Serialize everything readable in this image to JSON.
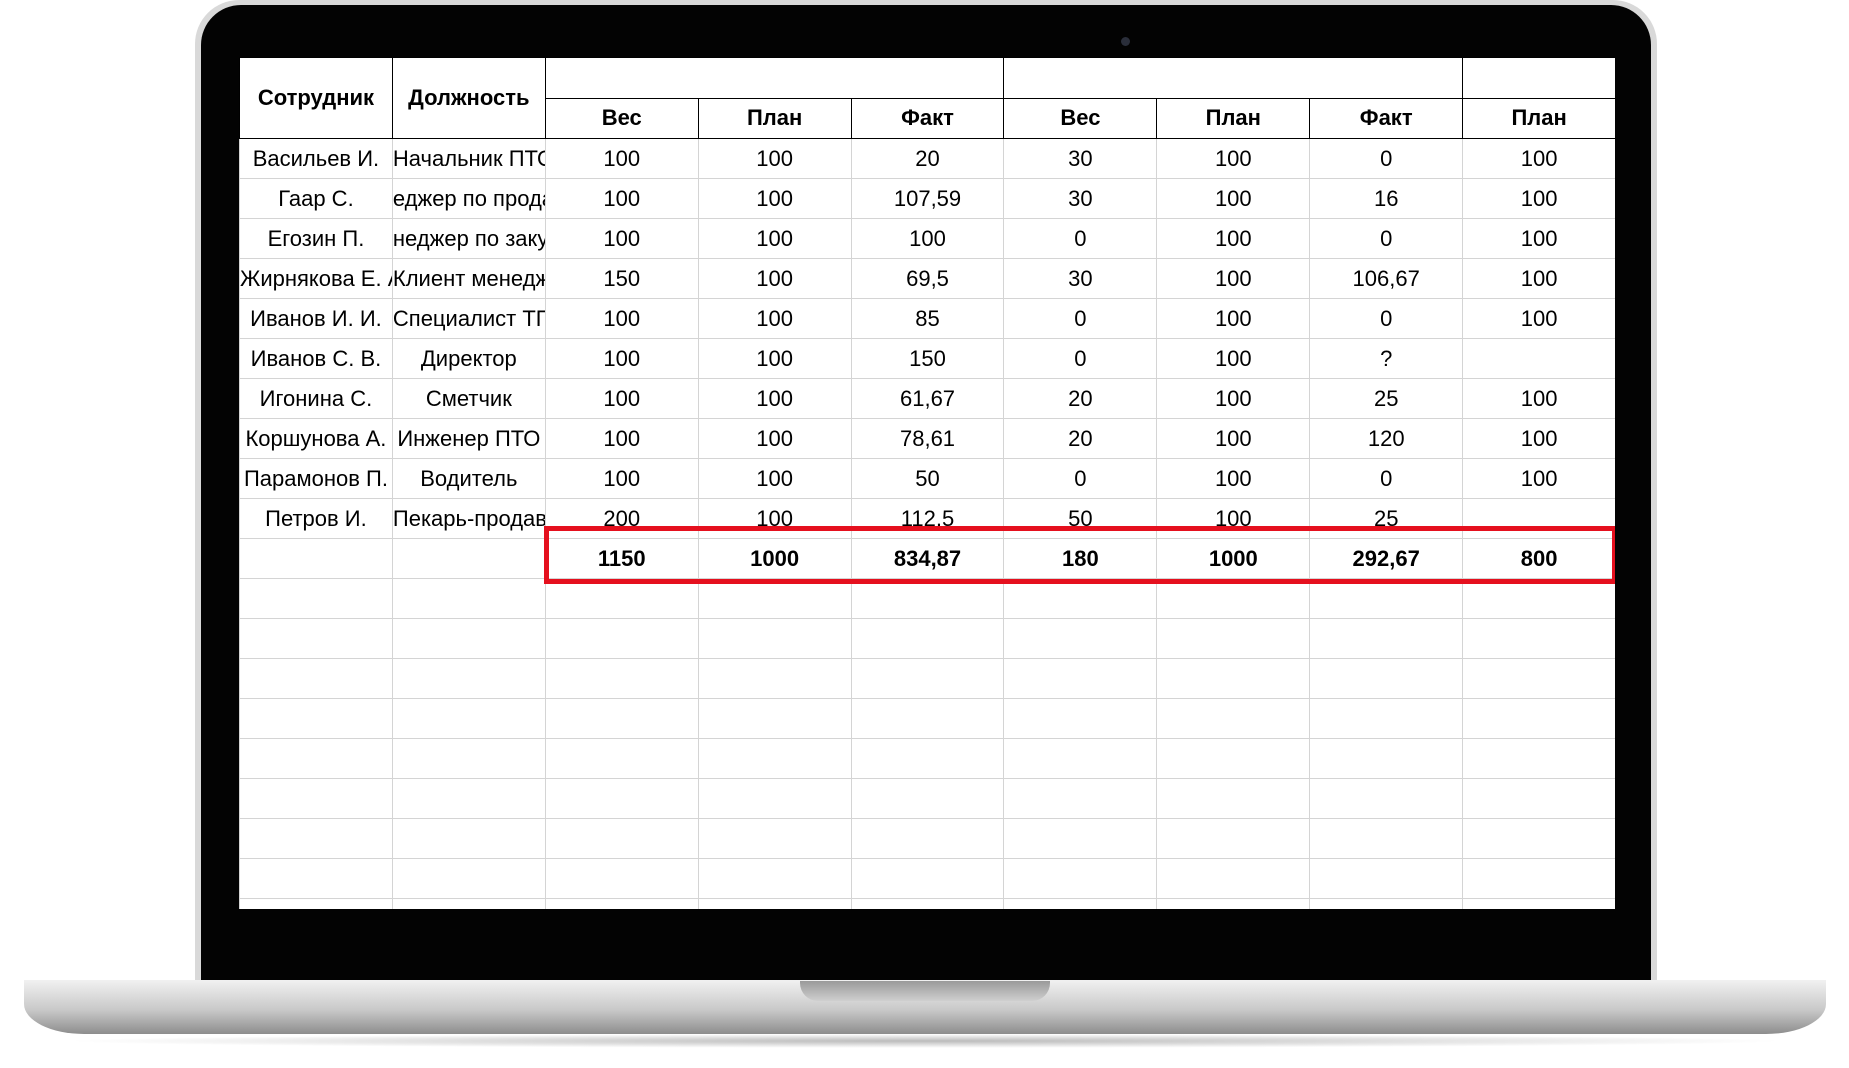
{
  "table": {
    "headers": {
      "employee": "Сотрудник",
      "position": "Должность"
    },
    "subheaders": [
      "Вес",
      "План",
      "Факт",
      "Вес",
      "План",
      "Факт",
      "План"
    ],
    "rows": [
      [
        "Васильев И.",
        "Начальник ПТО",
        "100",
        "100",
        "20",
        "30",
        "100",
        "0",
        "100"
      ],
      [
        "Гаар С.",
        "еджер по прода",
        "100",
        "100",
        "107,59",
        "30",
        "100",
        "16",
        "100"
      ],
      [
        "Егозин П.",
        "неджер по закуп",
        "100",
        "100",
        "100",
        "0",
        "100",
        "0",
        "100"
      ],
      [
        "Жирнякова Е. А.",
        "Клиент менеджер",
        "150",
        "100",
        "69,5",
        "30",
        "100",
        "106,67",
        "100"
      ],
      [
        "Иванов И. И.",
        "Специалист ТП",
        "100",
        "100",
        "85",
        "0",
        "100",
        "0",
        "100"
      ],
      [
        "Иванов С. В.",
        "Директор",
        "100",
        "100",
        "150",
        "0",
        "100",
        "?",
        ""
      ],
      [
        "Игонина С.",
        "Сметчик",
        "100",
        "100",
        "61,67",
        "20",
        "100",
        "25",
        "100"
      ],
      [
        "Коршунова А.",
        "Инженер ПТО",
        "100",
        "100",
        "78,61",
        "20",
        "100",
        "120",
        "100"
      ],
      [
        "Парамонов П.",
        "Водитель",
        "100",
        "100",
        "50",
        "0",
        "100",
        "0",
        "100"
      ],
      [
        "Петров И.",
        "Пекарь-продавец",
        "200",
        "100",
        "112,5",
        "50",
        "100",
        "25",
        ""
      ]
    ],
    "totals": [
      "",
      "",
      "1150",
      "1000",
      "834,87",
      "180",
      "1000",
      "292,67",
      "800"
    ]
  },
  "colors": {
    "highlight": "#e5101e"
  }
}
